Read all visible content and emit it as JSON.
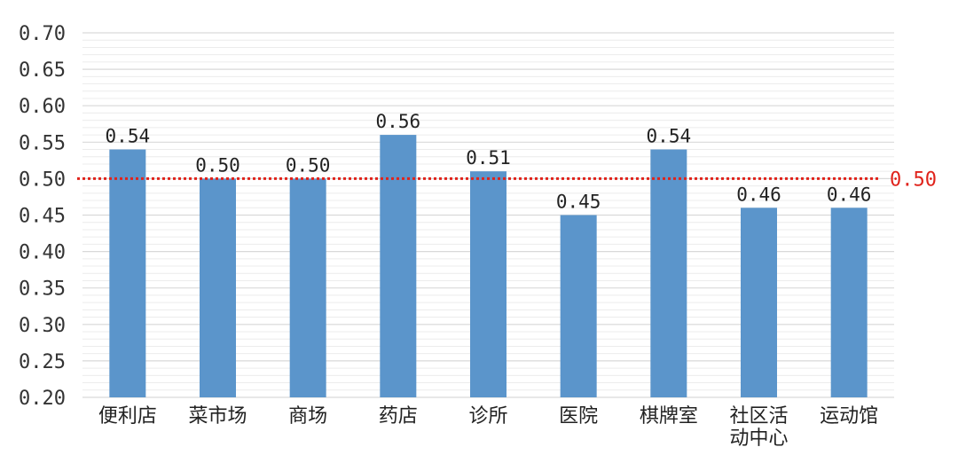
{
  "chart_data": {
    "type": "bar",
    "categories": [
      "便利店",
      "菜市场",
      "商场",
      "药店",
      "诊所",
      "医院",
      "棋牌室",
      "社区活动中心",
      "运动馆"
    ],
    "category_lines": [
      [
        "便利店"
      ],
      [
        "菜市场"
      ],
      [
        "商场"
      ],
      [
        "药店"
      ],
      [
        "诊所"
      ],
      [
        "医院"
      ],
      [
        "棋牌室"
      ],
      [
        "社区活",
        "动中心"
      ],
      [
        "运动馆"
      ]
    ],
    "values": [
      0.54,
      0.5,
      0.5,
      0.56,
      0.51,
      0.45,
      0.54,
      0.46,
      0.46
    ],
    "value_labels": [
      "0.54",
      "0.50",
      "0.50",
      "0.56",
      "0.51",
      "0.45",
      "0.54",
      "0.46",
      "0.46"
    ],
    "y_ticks": [
      "0.20",
      "0.25",
      "0.30",
      "0.35",
      "0.40",
      "0.45",
      "0.50",
      "0.55",
      "0.60",
      "0.65",
      "0.70"
    ],
    "y_tick_values": [
      0.2,
      0.25,
      0.3,
      0.35,
      0.4,
      0.45,
      0.5,
      0.55,
      0.6,
      0.65,
      0.7
    ],
    "highlight_tick": "0.50",
    "ylim": [
      0.2,
      0.7
    ],
    "reference_line": {
      "value": 0.5,
      "label": "0.50",
      "style": "dotted"
    },
    "title": "",
    "xlabel": "",
    "ylabel": "",
    "grid": true,
    "colors": {
      "bar": "#5b95cb",
      "reference": "#e0231b",
      "grid": "#d9d9d9",
      "highlight_tick": "#e0231b"
    }
  }
}
